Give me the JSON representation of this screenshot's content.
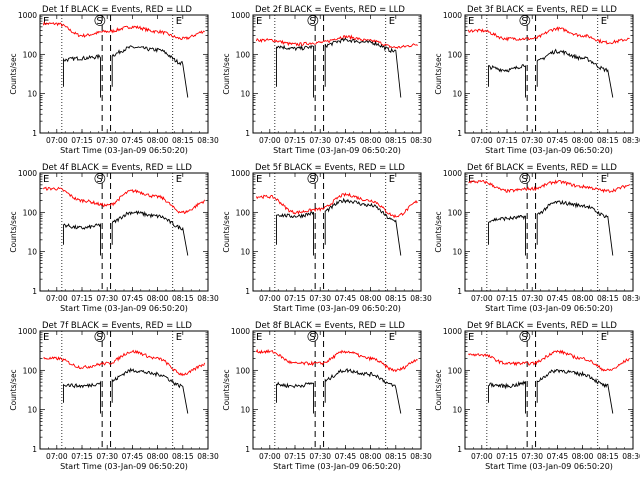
{
  "figure": {
    "start_time_label": "Start Time (03-Jan-09 06:50:20)",
    "ylabel": "Counts/sec",
    "x_ticks": [
      "07:00",
      "07:15",
      "07:30",
      "07:45",
      "08:00",
      "08:15",
      "08:30"
    ],
    "y_ticks": [
      "1",
      "10",
      "100",
      "1000"
    ],
    "markers": {
      "E_left": "E",
      "S": "S",
      "E_right": "E"
    },
    "colors": {
      "events": "#000000",
      "lld": "#ff0000",
      "axes": "#000000"
    }
  },
  "chart_data": [
    {
      "type": "line",
      "title": "Det 1f BLACK = Events, RED = LLD",
      "xlim": [
        "06:50",
        "08:30"
      ],
      "yscale": "log",
      "ylim": [
        1,
        1000
      ],
      "x": [
        "07:00",
        "07:15",
        "07:30",
        "07:45",
        "08:00",
        "08:15",
        "08:30"
      ],
      "series": [
        {
          "values": [
            600,
            300,
            380,
            500,
            380,
            250,
            400
          ]
        },
        {
          "values": [
            70,
            80,
            90,
            150,
            130,
            60,
            null
          ]
        }
      ]
    },
    {
      "type": "line",
      "title": "Det 2f BLACK = Events, RED = LLD",
      "xlim": [
        "06:50",
        "08:30"
      ],
      "yscale": "log",
      "ylim": [
        1,
        1000
      ],
      "x": [
        "07:00",
        "07:15",
        "07:30",
        "07:45",
        "08:00",
        "08:15",
        "08:30"
      ],
      "series": [
        {
          "values": [
            230,
            180,
            200,
            280,
            220,
            150,
            180
          ]
        },
        {
          "values": [
            170,
            140,
            160,
            230,
            200,
            120,
            null
          ]
        }
      ]
    },
    {
      "type": "line",
      "title": "Det 3f BLACK = Events, RED = LLD",
      "xlim": [
        "06:50",
        "08:30"
      ],
      "yscale": "log",
      "ylim": [
        1,
        1000
      ],
      "x": [
        "07:00",
        "07:15",
        "07:30",
        "07:45",
        "08:00",
        "08:15",
        "08:30"
      ],
      "series": [
        {
          "values": [
            400,
            250,
            250,
            450,
            300,
            200,
            250
          ]
        },
        {
          "values": [
            50,
            40,
            60,
            120,
            80,
            40,
            null
          ]
        }
      ]
    },
    {
      "type": "line",
      "title": "Det 4f BLACK = Events, RED = LLD",
      "xlim": [
        "06:50",
        "08:30"
      ],
      "yscale": "log",
      "ylim": [
        1,
        1000
      ],
      "x": [
        "07:00",
        "07:15",
        "07:30",
        "07:45",
        "08:00",
        "08:15",
        "08:30"
      ],
      "series": [
        {
          "values": [
            400,
            200,
            150,
            350,
            250,
            100,
            200
          ]
        },
        {
          "values": [
            50,
            40,
            50,
            100,
            80,
            40,
            null
          ]
        }
      ]
    },
    {
      "type": "line",
      "title": "Det 5f BLACK = Events, RED = LLD",
      "xlim": [
        "06:50",
        "08:30"
      ],
      "yscale": "log",
      "ylim": [
        1,
        1000
      ],
      "x": [
        "07:00",
        "07:15",
        "07:30",
        "07:45",
        "08:00",
        "08:15",
        "08:30"
      ],
      "series": [
        {
          "values": [
            250,
            100,
            120,
            280,
            200,
            80,
            200
          ]
        },
        {
          "values": [
            90,
            80,
            100,
            200,
            150,
            60,
            null
          ]
        }
      ]
    },
    {
      "type": "line",
      "title": "Det 6f BLACK = Events, RED = LLD",
      "xlim": [
        "06:50",
        "08:30"
      ],
      "yscale": "log",
      "ylim": [
        1,
        1000
      ],
      "x": [
        "07:00",
        "07:15",
        "07:30",
        "07:45",
        "08:00",
        "08:15",
        "08:30"
      ],
      "series": [
        {
          "values": [
            600,
            350,
            400,
            600,
            450,
            350,
            500
          ]
        },
        {
          "values": [
            60,
            70,
            80,
            180,
            150,
            80,
            null
          ]
        }
      ]
    },
    {
      "type": "line",
      "title": "Det 7f BLACK = Events, RED = LLD",
      "xlim": [
        "06:50",
        "08:30"
      ],
      "yscale": "log",
      "ylim": [
        1,
        1000
      ],
      "x": [
        "07:00",
        "07:15",
        "07:30",
        "07:45",
        "08:00",
        "08:15",
        "08:30"
      ],
      "series": [
        {
          "values": [
            200,
            120,
            150,
            300,
            200,
            80,
            150
          ]
        },
        {
          "values": [
            45,
            40,
            50,
            100,
            80,
            40,
            null
          ]
        }
      ]
    },
    {
      "type": "line",
      "title": "Det 8f BLACK = Events, RED = LLD",
      "xlim": [
        "06:50",
        "08:30"
      ],
      "yscale": "log",
      "ylim": [
        1,
        1000
      ],
      "x": [
        "07:00",
        "07:15",
        "07:30",
        "07:45",
        "08:00",
        "08:15",
        "08:30"
      ],
      "series": [
        {
          "values": [
            300,
            150,
            150,
            300,
            200,
            100,
            200
          ]
        },
        {
          "values": [
            45,
            40,
            50,
            100,
            80,
            40,
            null
          ]
        }
      ]
    },
    {
      "type": "line",
      "title": "Det 9f BLACK = Events, RED = LLD",
      "xlim": [
        "06:50",
        "08:30"
      ],
      "yscale": "log",
      "ylim": [
        1,
        1000
      ],
      "x": [
        "07:00",
        "07:15",
        "07:30",
        "07:45",
        "08:00",
        "08:15",
        "08:30"
      ],
      "series": [
        {
          "values": [
            250,
            150,
            150,
            300,
            200,
            100,
            200
          ]
        },
        {
          "values": [
            45,
            40,
            50,
            100,
            80,
            40,
            null
          ]
        }
      ]
    }
  ]
}
